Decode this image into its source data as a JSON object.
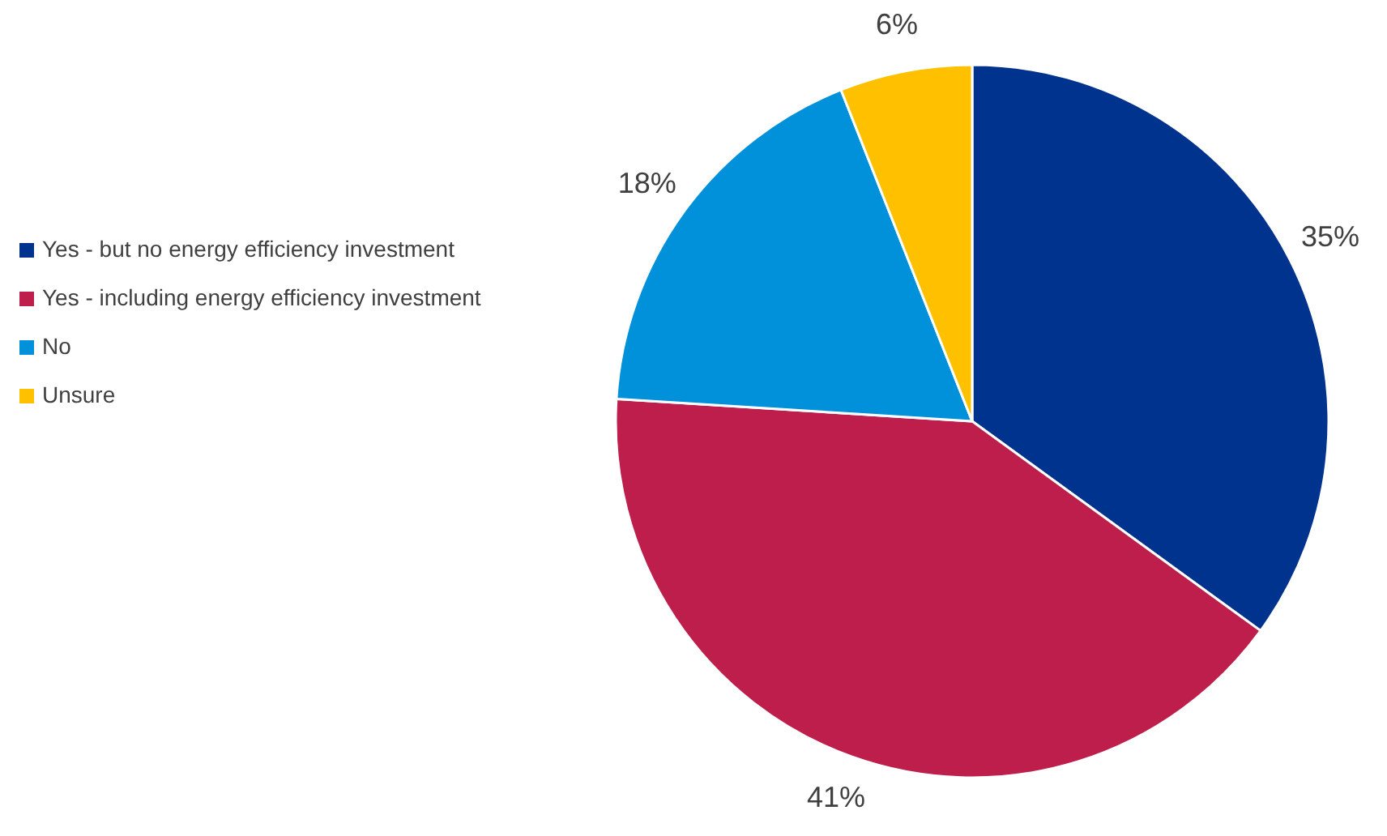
{
  "chart_data": {
    "type": "pie",
    "categories": [
      "Yes - but no energy efficiency investment",
      "Yes - including energy efficiency investment",
      "No",
      "Unsure"
    ],
    "values": [
      35,
      41,
      18,
      6
    ],
    "colors": [
      "#00338d",
      "#be1e4b",
      "#0091da",
      "#ffc000"
    ],
    "value_labels": [
      "35%",
      "41%",
      "18%",
      "6%"
    ],
    "legend": "left"
  }
}
